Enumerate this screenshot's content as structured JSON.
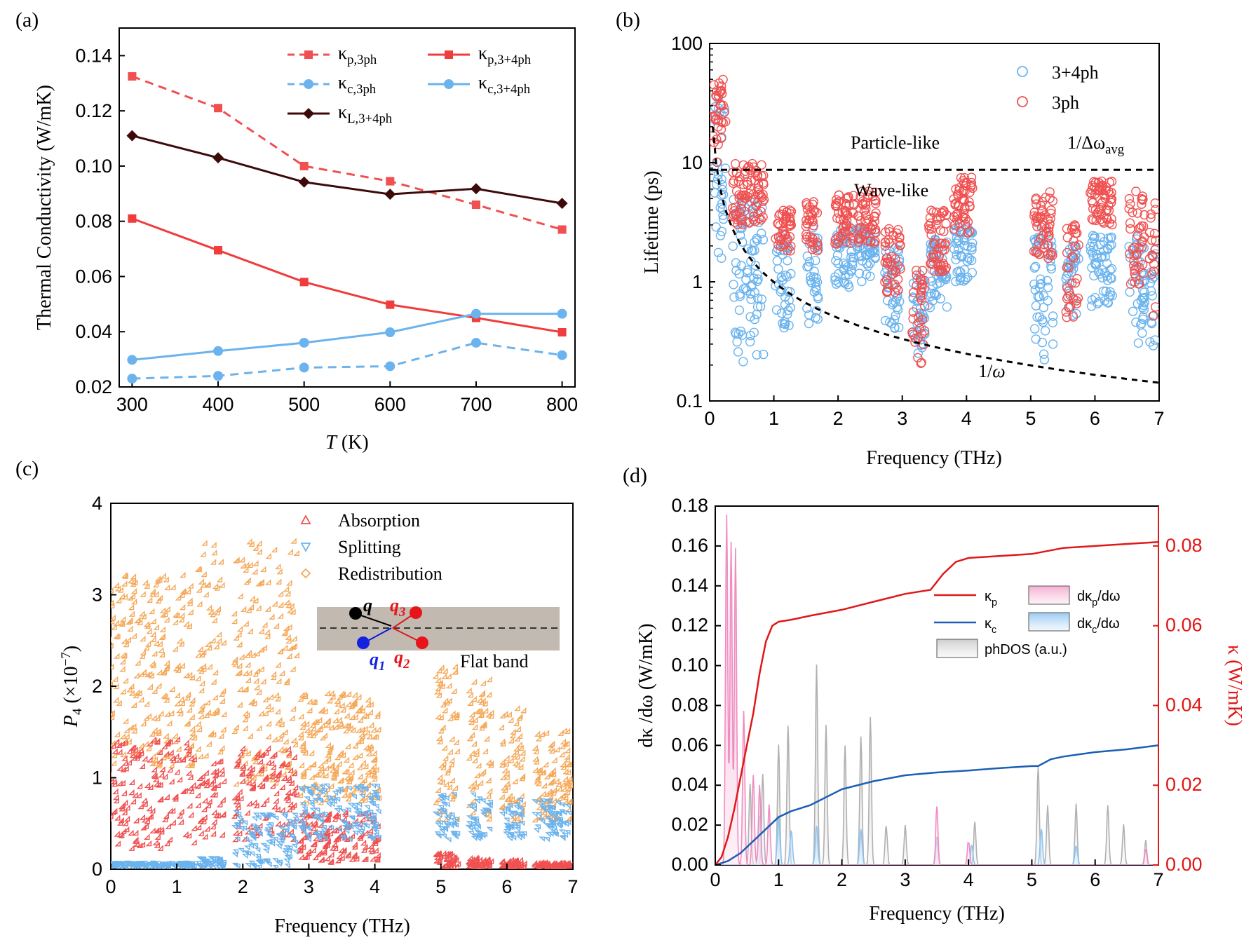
{
  "chart_data": [
    {
      "panel": "(a)",
      "type": "line",
      "xlabel_italic": "T",
      "xlabel_unit": " (K)",
      "ylabel": "Thermal Conductivity (W/mK)",
      "xlim": [
        285,
        815
      ],
      "ylim": [
        0.02,
        0.15
      ],
      "xticks": [
        "300",
        "400",
        "500",
        "600",
        "700",
        "800"
      ],
      "yticks": [
        "0.02",
        "0.04",
        "0.06",
        "0.08",
        "0.10",
        "0.12",
        "0.14"
      ],
      "x": [
        300,
        400,
        500,
        600,
        700,
        800
      ],
      "series": [
        {
          "name_base": "κ",
          "name_sub": "p,3ph",
          "color": "#f05050",
          "dash": true,
          "marker": "square",
          "values": [
            0.1325,
            0.121,
            0.1,
            0.0945,
            0.086,
            0.077
          ]
        },
        {
          "name_base": "κ",
          "name_sub": "p,3+4ph",
          "color": "#f03c3c",
          "dash": false,
          "marker": "square",
          "values": [
            0.081,
            0.0695,
            0.058,
            0.0498,
            0.045,
            0.0398
          ]
        },
        {
          "name_base": "κ",
          "name_sub": "c,3ph",
          "color": "#6ab3ee",
          "dash": true,
          "marker": "circle",
          "values": [
            0.023,
            0.024,
            0.027,
            0.0275,
            0.036,
            0.0315
          ]
        },
        {
          "name_base": "κ",
          "name_sub": "c,3+4ph",
          "color": "#6ab3ee",
          "dash": false,
          "marker": "circle",
          "values": [
            0.0298,
            0.033,
            0.036,
            0.0398,
            0.0465,
            0.0465
          ]
        },
        {
          "name_base": "κ",
          "name_sub": "L,3+4ph",
          "color": "#3d0a0a",
          "dash": false,
          "marker": "diamond",
          "values": [
            0.111,
            0.103,
            0.0942,
            0.0898,
            0.0918,
            0.0865
          ]
        }
      ]
    },
    {
      "panel": "(b)",
      "type": "scatter",
      "xlabel": "Frequency (THz)",
      "ylabel": "Lifetime (ps)",
      "yscale": "log",
      "xlim": [
        0,
        7
      ],
      "ylim": [
        0.1,
        100
      ],
      "xticks": [
        "0",
        "1",
        "2",
        "3",
        "4",
        "5",
        "6",
        "7"
      ],
      "yticks": [
        "0.1",
        "1",
        "10",
        "100"
      ],
      "series": [
        {
          "name": "3+4ph",
          "color": "#6ab3ee"
        },
        {
          "name": "3ph",
          "color": "#f05050"
        }
      ],
      "reference_lines": [
        {
          "label": "1/Δω",
          "label_sub": "avg",
          "value_ps": 8.7
        },
        {
          "label": "1/",
          "label_italic": "ω",
          "form": "1/omega"
        }
      ],
      "region_labels": [
        "Particle-like",
        "Wave-like"
      ],
      "clusters": [
        {
          "center": 0.15,
          "width": 0.2,
          "red": [
            10,
            50
          ],
          "blue": [
            1.5,
            40
          ]
        },
        {
          "center": 0.6,
          "width": 0.5,
          "red": [
            3,
            10
          ],
          "blue": [
            0.2,
            5
          ]
        },
        {
          "center": 1.15,
          "width": 0.25,
          "red": [
            1.8,
            4
          ],
          "blue": [
            0.4,
            2.5
          ]
        },
        {
          "center": 1.6,
          "width": 0.2,
          "red": [
            1.8,
            5
          ],
          "blue": [
            0.4,
            3
          ]
        },
        {
          "center": 2.1,
          "width": 0.3,
          "red": [
            2,
            5.5
          ],
          "blue": [
            0.9,
            3
          ]
        },
        {
          "center": 2.45,
          "width": 0.3,
          "red": [
            2,
            6
          ],
          "blue": [
            1,
            3
          ]
        },
        {
          "center": 2.85,
          "width": 0.25,
          "red": [
            0.8,
            2.8
          ],
          "blue": [
            0.4,
            2
          ]
        },
        {
          "center": 3.25,
          "width": 0.2,
          "red": [
            0.2,
            1.5
          ],
          "blue": [
            0.25,
            1.2
          ]
        },
        {
          "center": 3.55,
          "width": 0.3,
          "red": [
            1.2,
            4
          ],
          "blue": [
            0.6,
            2.5
          ]
        },
        {
          "center": 3.95,
          "width": 0.3,
          "red": [
            2.5,
            8
          ],
          "blue": [
            1,
            3
          ]
        },
        {
          "center": 5.2,
          "width": 0.3,
          "red": [
            1.5,
            6
          ],
          "blue": [
            0.2,
            3
          ]
        },
        {
          "center": 5.65,
          "width": 0.2,
          "red": [
            0.5,
            3
          ],
          "blue": [
            0.5,
            2
          ]
        },
        {
          "center": 6.1,
          "width": 0.35,
          "red": [
            3,
            7
          ],
          "blue": [
            0.6,
            2.5
          ]
        },
        {
          "center": 6.65,
          "width": 0.25,
          "red": [
            0.8,
            6
          ],
          "blue": [
            0.3,
            2.5
          ]
        },
        {
          "center": 6.9,
          "width": 0.1,
          "red": [
            0.5,
            5
          ],
          "blue": [
            0.2,
            2
          ]
        }
      ]
    },
    {
      "panel": "(c)",
      "type": "scatter",
      "xlabel": "Frequency (THz)",
      "ylabel_italic": "P",
      "ylabel_sub": "4",
      "ylabel_unit": " (×10",
      "ylabel_sup": "−7",
      "ylabel_end": ")",
      "xlim": [
        0,
        7
      ],
      "ylim": [
        0,
        4
      ],
      "xticks": [
        "0",
        "1",
        "2",
        "3",
        "4",
        "5",
        "6",
        "7"
      ],
      "yticks": [
        "0",
        "1",
        "2",
        "3",
        "4"
      ],
      "series": [
        {
          "name": "Absorption",
          "color": "#f05050",
          "marker": "triangle-up"
        },
        {
          "name": "Splitting",
          "color": "#6ab3ee",
          "marker": "triangle-down"
        },
        {
          "name": "Redistribution",
          "color": "#f5a95a",
          "marker": "diamond"
        }
      ],
      "inset": {
        "caption": "Flat band",
        "labels": [
          {
            "text": "q",
            "sub": ""
          },
          {
            "text": "q",
            "sub": "1"
          },
          {
            "text": "q",
            "sub": "2"
          },
          {
            "text": "q",
            "sub": "3"
          }
        ]
      },
      "clusters": [
        {
          "x0": 0.0,
          "x1": 1.3,
          "orange": [
            1.1,
            3.2
          ],
          "red": [
            0.2,
            1.4
          ],
          "blue": [
            0.0,
            0.05
          ]
        },
        {
          "x0": 1.35,
          "x1": 1.75,
          "orange": [
            1.2,
            3.55
          ],
          "red": [
            0.3,
            1.2
          ],
          "blue": [
            0.0,
            0.1
          ]
        },
        {
          "x0": 1.9,
          "x1": 2.85,
          "orange": [
            0.9,
            3.6
          ],
          "red": [
            0.3,
            1.3
          ],
          "blue": [
            0.0,
            0.6
          ]
        },
        {
          "x0": 2.9,
          "x1": 4.1,
          "orange": [
            0.7,
            1.9
          ],
          "red": [
            0.05,
            0.6
          ],
          "blue": [
            0.3,
            0.9
          ]
        },
        {
          "x0": 4.95,
          "x1": 5.3,
          "orange": [
            0.5,
            2.2
          ],
          "red": [
            0.0,
            0.15
          ],
          "blue": [
            0.3,
            0.8
          ]
        },
        {
          "x0": 5.45,
          "x1": 5.8,
          "orange": [
            0.5,
            2.1
          ],
          "red": [
            0.0,
            0.1
          ],
          "blue": [
            0.3,
            0.8
          ]
        },
        {
          "x0": 5.95,
          "x1": 6.3,
          "orange": [
            0.5,
            1.75
          ],
          "red": [
            0.0,
            0.08
          ],
          "blue": [
            0.3,
            0.75
          ]
        },
        {
          "x0": 6.45,
          "x1": 7.0,
          "orange": [
            0.5,
            1.5
          ],
          "red": [
            0.0,
            0.05
          ],
          "blue": [
            0.3,
            0.75
          ]
        }
      ]
    },
    {
      "panel": "(d)",
      "type": "line",
      "xlabel": "Frequency (THz)",
      "ylabel_left": "dκ /dω  (W/mK)",
      "ylabel_right": "κ  (W/mK)",
      "xlim": [
        0,
        7
      ],
      "ylim_left": [
        0,
        0.18
      ],
      "ylim_right": [
        0,
        0.09
      ],
      "xticks": [
        "0",
        "1",
        "2",
        "3",
        "4",
        "5",
        "6",
        "7"
      ],
      "yticks_left": [
        "0.00",
        "0.02",
        "0.04",
        "0.06",
        "0.08",
        "0.10",
        "0.12",
        "0.14",
        "0.16",
        "0.18"
      ],
      "yticks_right": [
        "0.00",
        "0.02",
        "0.04",
        "0.06",
        "0.08"
      ],
      "legend": [
        {
          "base": "κ",
          "sub": "p",
          "kind": "line",
          "color": "#e01818"
        },
        {
          "base": "κ",
          "sub": "c",
          "kind": "line",
          "color": "#1b5fb5"
        },
        {
          "base": "dκ",
          "sub": "p",
          "end": "/dω",
          "kind": "fill",
          "color": "#f4a6cc"
        },
        {
          "base": "dκ",
          "sub": "c",
          "end": "/dω",
          "kind": "fill",
          "color": "#8ec3f0"
        },
        {
          "base": "phDOS (a.u.)",
          "sub": "",
          "end": "",
          "kind": "fill",
          "color": "#b8b8b8"
        }
      ],
      "kappa_p": {
        "x": [
          0,
          0.1,
          0.2,
          0.3,
          0.4,
          0.5,
          0.6,
          0.7,
          0.8,
          0.9,
          1.0,
          1.2,
          1.5,
          2.0,
          2.5,
          3.0,
          3.4,
          3.6,
          3.8,
          4.0,
          4.5,
          5.0,
          5.5,
          6.0,
          6.5,
          7.0
        ],
        "y": [
          0,
          0.002,
          0.007,
          0.014,
          0.022,
          0.03,
          0.038,
          0.048,
          0.056,
          0.06,
          0.061,
          0.0615,
          0.0625,
          0.064,
          0.066,
          0.068,
          0.069,
          0.073,
          0.076,
          0.077,
          0.0775,
          0.078,
          0.0795,
          0.08,
          0.0805,
          0.081
        ]
      },
      "kappa_c": {
        "x": [
          0,
          0.2,
          0.4,
          0.6,
          0.8,
          1.0,
          1.2,
          1.5,
          2.0,
          2.5,
          3.0,
          3.5,
          4.0,
          4.5,
          5.0,
          5.1,
          5.3,
          5.5,
          6.0,
          6.5,
          7.0
        ],
        "y": [
          0,
          0.001,
          0.003,
          0.006,
          0.009,
          0.012,
          0.0135,
          0.015,
          0.019,
          0.021,
          0.0225,
          0.0232,
          0.0237,
          0.0243,
          0.0248,
          0.0248,
          0.0265,
          0.0272,
          0.0283,
          0.029,
          0.03
        ]
      },
      "dkp_peaks": [
        [
          0.18,
          0.176
        ],
        [
          0.25,
          0.163
        ],
        [
          0.32,
          0.159
        ],
        [
          0.45,
          0.077
        ],
        [
          0.6,
          0.045
        ],
        [
          0.7,
          0.04
        ],
        [
          0.85,
          0.03
        ],
        [
          3.5,
          0.03
        ],
        [
          4.0,
          0.012
        ],
        [
          6.8,
          0.007
        ]
      ],
      "dkc_peaks": [
        [
          0.7,
          0.025
        ],
        [
          1.0,
          0.025
        ],
        [
          1.2,
          0.018
        ],
        [
          1.6,
          0.02
        ],
        [
          2.3,
          0.018
        ],
        [
          3.5,
          0.012
        ],
        [
          4.05,
          0.01
        ],
        [
          5.15,
          0.018
        ],
        [
          5.7,
          0.01
        ]
      ],
      "dos_peaks": [
        [
          0.55,
          0.04
        ],
        [
          0.75,
          0.045
        ],
        [
          1.0,
          0.06
        ],
        [
          1.15,
          0.07
        ],
        [
          1.6,
          0.1
        ],
        [
          1.75,
          0.07
        ],
        [
          2.05,
          0.06
        ],
        [
          2.3,
          0.065
        ],
        [
          2.45,
          0.075
        ],
        [
          2.7,
          0.02
        ],
        [
          3.0,
          0.02
        ],
        [
          3.5,
          0.015
        ],
        [
          4.1,
          0.022
        ],
        [
          5.1,
          0.05
        ],
        [
          5.25,
          0.03
        ],
        [
          5.7,
          0.03
        ],
        [
          6.2,
          0.03
        ],
        [
          6.45,
          0.02
        ],
        [
          6.8,
          0.012
        ]
      ]
    }
  ]
}
